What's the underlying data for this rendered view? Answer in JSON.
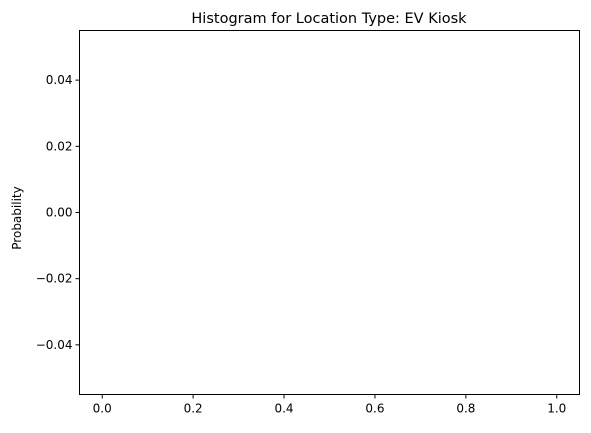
{
  "chart_data": {
    "type": "bar",
    "title": "Histogram for Location Type: EV Kiosk",
    "xlabel": "",
    "ylabel": "Probability",
    "xlim": [
      -0.05,
      1.05
    ],
    "ylim": [
      -0.055,
      0.055
    ],
    "x_ticks": [
      0.0,
      0.2,
      0.4,
      0.6,
      0.8,
      1.0
    ],
    "x_tick_labels": [
      "0.0",
      "0.2",
      "0.4",
      "0.6",
      "0.8",
      "1.0"
    ],
    "y_ticks": [
      -0.04,
      -0.02,
      0.0,
      0.02,
      0.04
    ],
    "y_tick_labels": [
      "−0.04",
      "−0.02",
      "0.00",
      "0.02",
      "0.04"
    ],
    "values": [],
    "grid": false,
    "legend": "none"
  }
}
